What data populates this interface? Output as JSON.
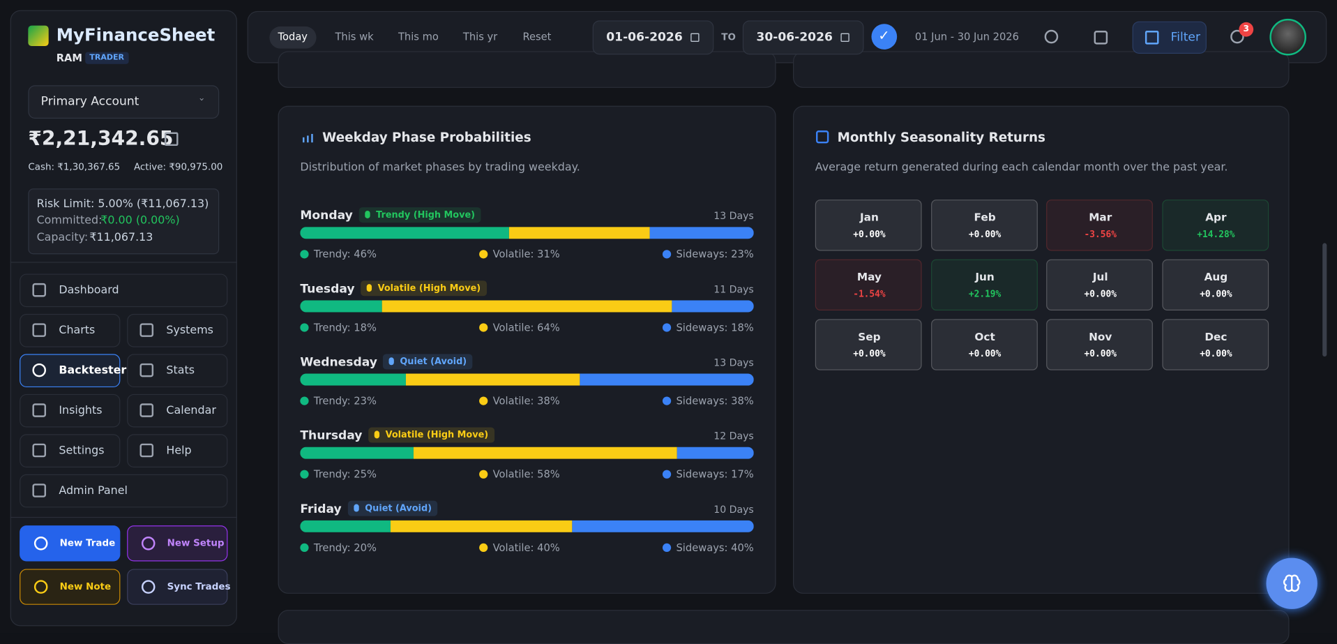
{
  "sidebar": {
    "brand": "MyFinanceSheet",
    "user": "RAM",
    "role": "TRADER",
    "account": "Primary Account",
    "balance": "₹2,21,342.65",
    "cash": "Cash: ₹1,30,367.65",
    "active": "Active: ₹90,975.00",
    "risk_limit": "Risk Limit: 5.00% (₹11,067.13)",
    "committed_label": "Committed:",
    "committed_value": "₹0.00 (0.00%)",
    "capacity_label": "Capacity:",
    "capacity_value": "₹11,067.13",
    "nav": [
      "Dashboard",
      "Charts",
      "Systems",
      "Backtester",
      "Stats",
      "Insights",
      "Calendar",
      "Settings",
      "Help",
      "Admin Panel"
    ],
    "actions": [
      "New Trade",
      "New Setup",
      "New Note",
      "Sync Trades"
    ]
  },
  "topbar": {
    "ranges": [
      "Today",
      "This wk",
      "This mo",
      "This yr",
      "Reset"
    ],
    "date_from": "01-06-2026",
    "to": "TO",
    "date_to": "30-06-2026",
    "range_text": "01 Jun - 30 Jun 2026",
    "filter": "Filter",
    "notifications": "3"
  },
  "weekday_panel": {
    "title": "Weekday Phase Probabilities",
    "subtitle": "Distribution of market phases by trading weekday.",
    "segment_colors": [
      "#10b981",
      "#facc15",
      "#3b82f6"
    ],
    "days": [
      {
        "name": "Monday",
        "badge": "Trendy (High Move)",
        "badge_color": "#22c55e",
        "count": "13 Days",
        "segments": [
          {
            "label": "Trendy: 46%",
            "value": 46
          },
          {
            "label": "Volatile: 31%",
            "value": 31
          },
          {
            "label": "Sideways: 23%",
            "value": 23
          }
        ]
      },
      {
        "name": "Tuesday",
        "badge": "Volatile (High Move)",
        "badge_color": "#facc15",
        "count": "11 Days",
        "segments": [
          {
            "label": "Trendy: 18%",
            "value": 18
          },
          {
            "label": "Volatile: 64%",
            "value": 64
          },
          {
            "label": "Sideways: 18%",
            "value": 18
          }
        ]
      },
      {
        "name": "Wednesday",
        "badge": "Quiet (Avoid)",
        "badge_color": "#60a5fa",
        "count": "13 Days",
        "segments": [
          {
            "label": "Trendy: 23%",
            "value": 23
          },
          {
            "label": "Volatile: 38%",
            "value": 38
          },
          {
            "label": "Sideways: 38%",
            "value": 38
          }
        ]
      },
      {
        "name": "Thursday",
        "badge": "Volatile (High Move)",
        "badge_color": "#facc15",
        "count": "12 Days",
        "segments": [
          {
            "label": "Trendy: 25%",
            "value": 25
          },
          {
            "label": "Volatile: 58%",
            "value": 58
          },
          {
            "label": "Sideways: 17%",
            "value": 17
          }
        ]
      },
      {
        "name": "Friday",
        "badge": "Quiet (Avoid)",
        "badge_color": "#60a5fa",
        "count": "10 Days",
        "segments": [
          {
            "label": "Trendy: 20%",
            "value": 20
          },
          {
            "label": "Volatile: 40%",
            "value": 40
          },
          {
            "label": "Sideways: 40%",
            "value": 40
          }
        ]
      }
    ]
  },
  "seasonality_panel": {
    "title": "Monthly Seasonality Returns",
    "subtitle": "Average return generated during each calendar month over the past year.",
    "months": [
      {
        "name": "Jan",
        "value": "+0.00%",
        "color": "#ffffff"
      },
      {
        "name": "Feb",
        "value": "+0.00%",
        "color": "#ffffff"
      },
      {
        "name": "Mar",
        "value": "-3.56%",
        "color": "#ef4444"
      },
      {
        "name": "Apr",
        "value": "+14.28%",
        "color": "#22c55e"
      },
      {
        "name": "May",
        "value": "-1.54%",
        "color": "#ef4444"
      },
      {
        "name": "Jun",
        "value": "+2.19%",
        "color": "#22c55e"
      },
      {
        "name": "Jul",
        "value": "+0.00%",
        "color": "#ffffff"
      },
      {
        "name": "Aug",
        "value": "+0.00%",
        "color": "#ffffff"
      },
      {
        "name": "Sep",
        "value": "+0.00%",
        "color": "#ffffff"
      },
      {
        "name": "Oct",
        "value": "+0.00%",
        "color": "#ffffff"
      },
      {
        "name": "Nov",
        "value": "+0.00%",
        "color": "#ffffff"
      },
      {
        "name": "Dec",
        "value": "+0.00%",
        "color": "#ffffff"
      }
    ]
  }
}
